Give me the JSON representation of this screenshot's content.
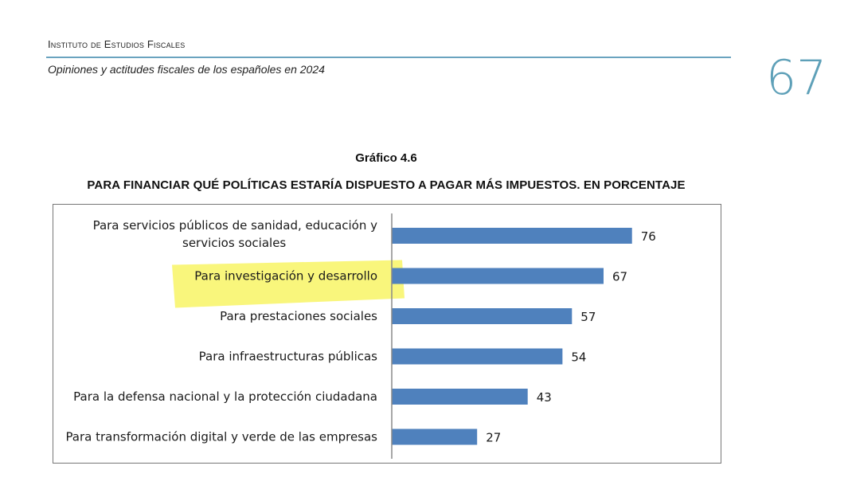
{
  "header": {
    "institute": "Instituto de Estudios Fiscales",
    "subtitle": "Opiniones y actitudes fiscales de los españoles en 2024",
    "page_number": "67"
  },
  "colors": {
    "bar": "#4f81bd",
    "highlight": "#f7f24a",
    "accent": "#5ea0b8"
  },
  "chart_data": {
    "type": "bar",
    "orientation": "horizontal",
    "chart_number": "Gráfico 4.6",
    "title": "PARA FINANCIAR QUÉ POLÍTICAS ESTARÍA DISPUESTO A PAGAR MÁS IMPUESTOS. EN PORCENTAJE",
    "categories": [
      [
        "Para servicios públicos de sanidad, educación y",
        "servicios sociales"
      ],
      [
        "Para investigación y desarrollo"
      ],
      [
        "Para prestaciones sociales"
      ],
      [
        "Para infraestructuras públicas"
      ],
      [
        "Para la defensa nacional y la protección ciudadana"
      ],
      [
        "Para transformación digital y verde de las empresas"
      ]
    ],
    "values": [
      76,
      67,
      57,
      54,
      43,
      27
    ],
    "highlighted_category_index": 1,
    "xlim": [
      0,
      100
    ],
    "grid": false
  }
}
